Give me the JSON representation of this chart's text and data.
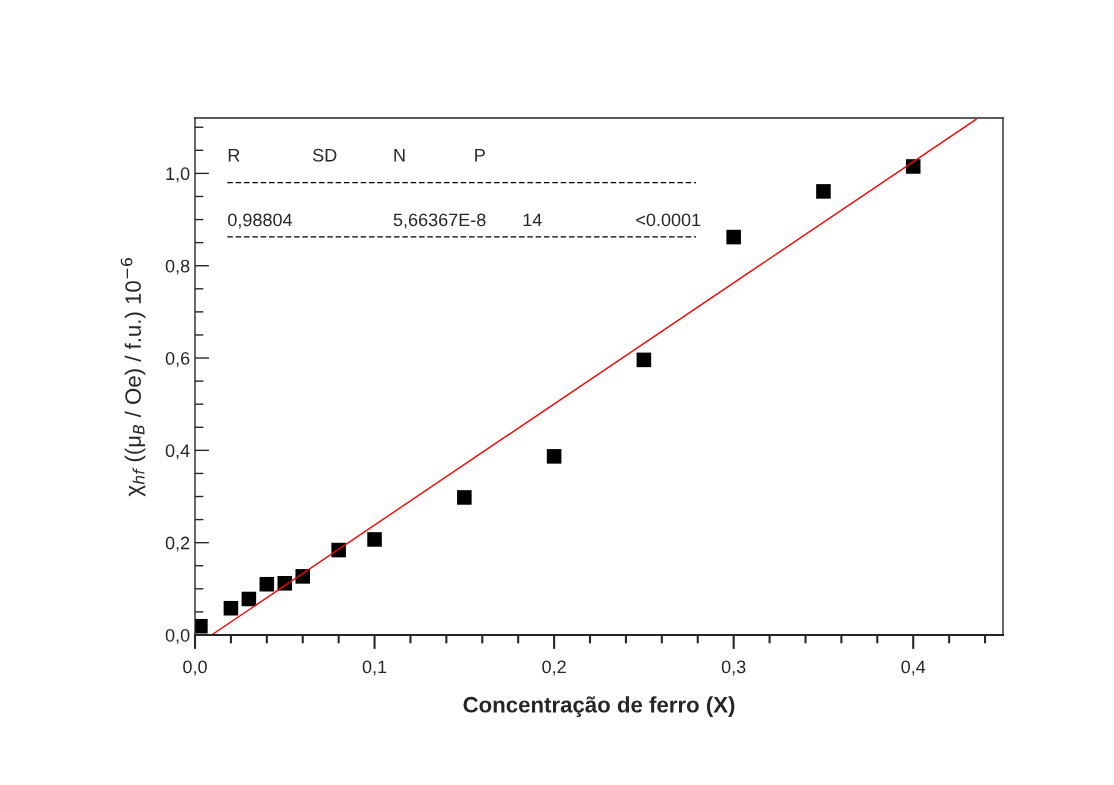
{
  "chart_data": {
    "type": "scatter",
    "xlabel": "Concentração de ferro (X)",
    "ylabel": "χ$_{hf}$ ((μ$_{B}$ / Oe) / f.u.) 10$^{−6}$",
    "series": [
      {
        "color": "#000000",
        "marker": "square",
        "x": [
          0.003,
          0.02,
          0.03,
          0.04,
          0.05,
          0.06,
          0.08,
          0.1,
          0.15,
          0.2,
          0.25,
          0.3,
          0.35,
          0.4
        ],
        "values": [
          0.019,
          0.058,
          0.078,
          0.11,
          0.112,
          0.127,
          0.184,
          0.207,
          0.298,
          0.387,
          0.596,
          0.862,
          0.961,
          1.015
        ]
      },
      {
        "type": "line",
        "color": "#ff0000",
        "line_style": "solid",
        "x": [
          0.0092,
          0.435
        ],
        "values": [
          0.0,
          1.117
        ]
      }
    ],
    "annotations": [
      "R",
      "SD",
      "N",
      "P",
      "0,98804",
      "5,66367E-8",
      "14",
      "<0.0001"
    ],
    "xlim": [
      0,
      0.45
    ],
    "ylim": [
      0,
      1.12
    ],
    "xticks": [
      {
        "value": 0,
        "label": "0,0"
      },
      {
        "value": 0.02,
        "label": null
      },
      {
        "value": 0.04,
        "label": null
      },
      {
        "value": 0.06,
        "label": null
      },
      {
        "value": 0.08,
        "label": null
      },
      {
        "value": 0.1,
        "label": "0,1"
      },
      {
        "value": 0.12,
        "label": null
      },
      {
        "value": 0.14,
        "label": null
      },
      {
        "value": 0.16,
        "label": null
      },
      {
        "value": 0.18,
        "label": null
      },
      {
        "value": 0.2,
        "label": "0,2"
      },
      {
        "value": 0.22,
        "label": null
      },
      {
        "value": 0.24,
        "label": null
      },
      {
        "value": 0.26,
        "label": null
      },
      {
        "value": 0.28,
        "label": null
      },
      {
        "value": 0.3,
        "label": "0,3"
      },
      {
        "value": 0.32,
        "label": null
      },
      {
        "value": 0.34,
        "label": null
      },
      {
        "value": 0.36,
        "label": null
      },
      {
        "value": 0.38,
        "label": null
      },
      {
        "value": 0.4,
        "label": "0,4"
      },
      {
        "value": 0.42,
        "label": null
      },
      {
        "value": 0.44,
        "label": null
      }
    ],
    "yticks": [
      {
        "value": 0,
        "label": "0,0"
      },
      {
        "value": 0.05,
        "label": null
      },
      {
        "value": 0.1,
        "label": null
      },
      {
        "value": 0.15,
        "label": null
      },
      {
        "value": 0.2,
        "label": "0,2"
      },
      {
        "value": 0.25,
        "label": null
      },
      {
        "value": 0.3,
        "label": null
      },
      {
        "value": 0.35,
        "label": null
      },
      {
        "value": 0.4,
        "label": "0,4"
      },
      {
        "value": 0.45,
        "label": null
      },
      {
        "value": 0.5,
        "label": null
      },
      {
        "value": 0.55,
        "label": null
      },
      {
        "value": 0.6,
        "label": "0,6"
      },
      {
        "value": 0.65,
        "label": null
      },
      {
        "value": 0.7,
        "label": null
      },
      {
        "value": 0.75,
        "label": null
      },
      {
        "value": 0.8,
        "label": "0,8"
      },
      {
        "value": 0.85,
        "label": null
      },
      {
        "value": 0.9,
        "label": null
      },
      {
        "value": 0.95,
        "label": null
      },
      {
        "value": 1.0,
        "label": "1,0"
      },
      {
        "value": 1.05,
        "label": null
      },
      {
        "value": 1.1,
        "label": null
      }
    ],
    "grid": false,
    "legend": false
  }
}
